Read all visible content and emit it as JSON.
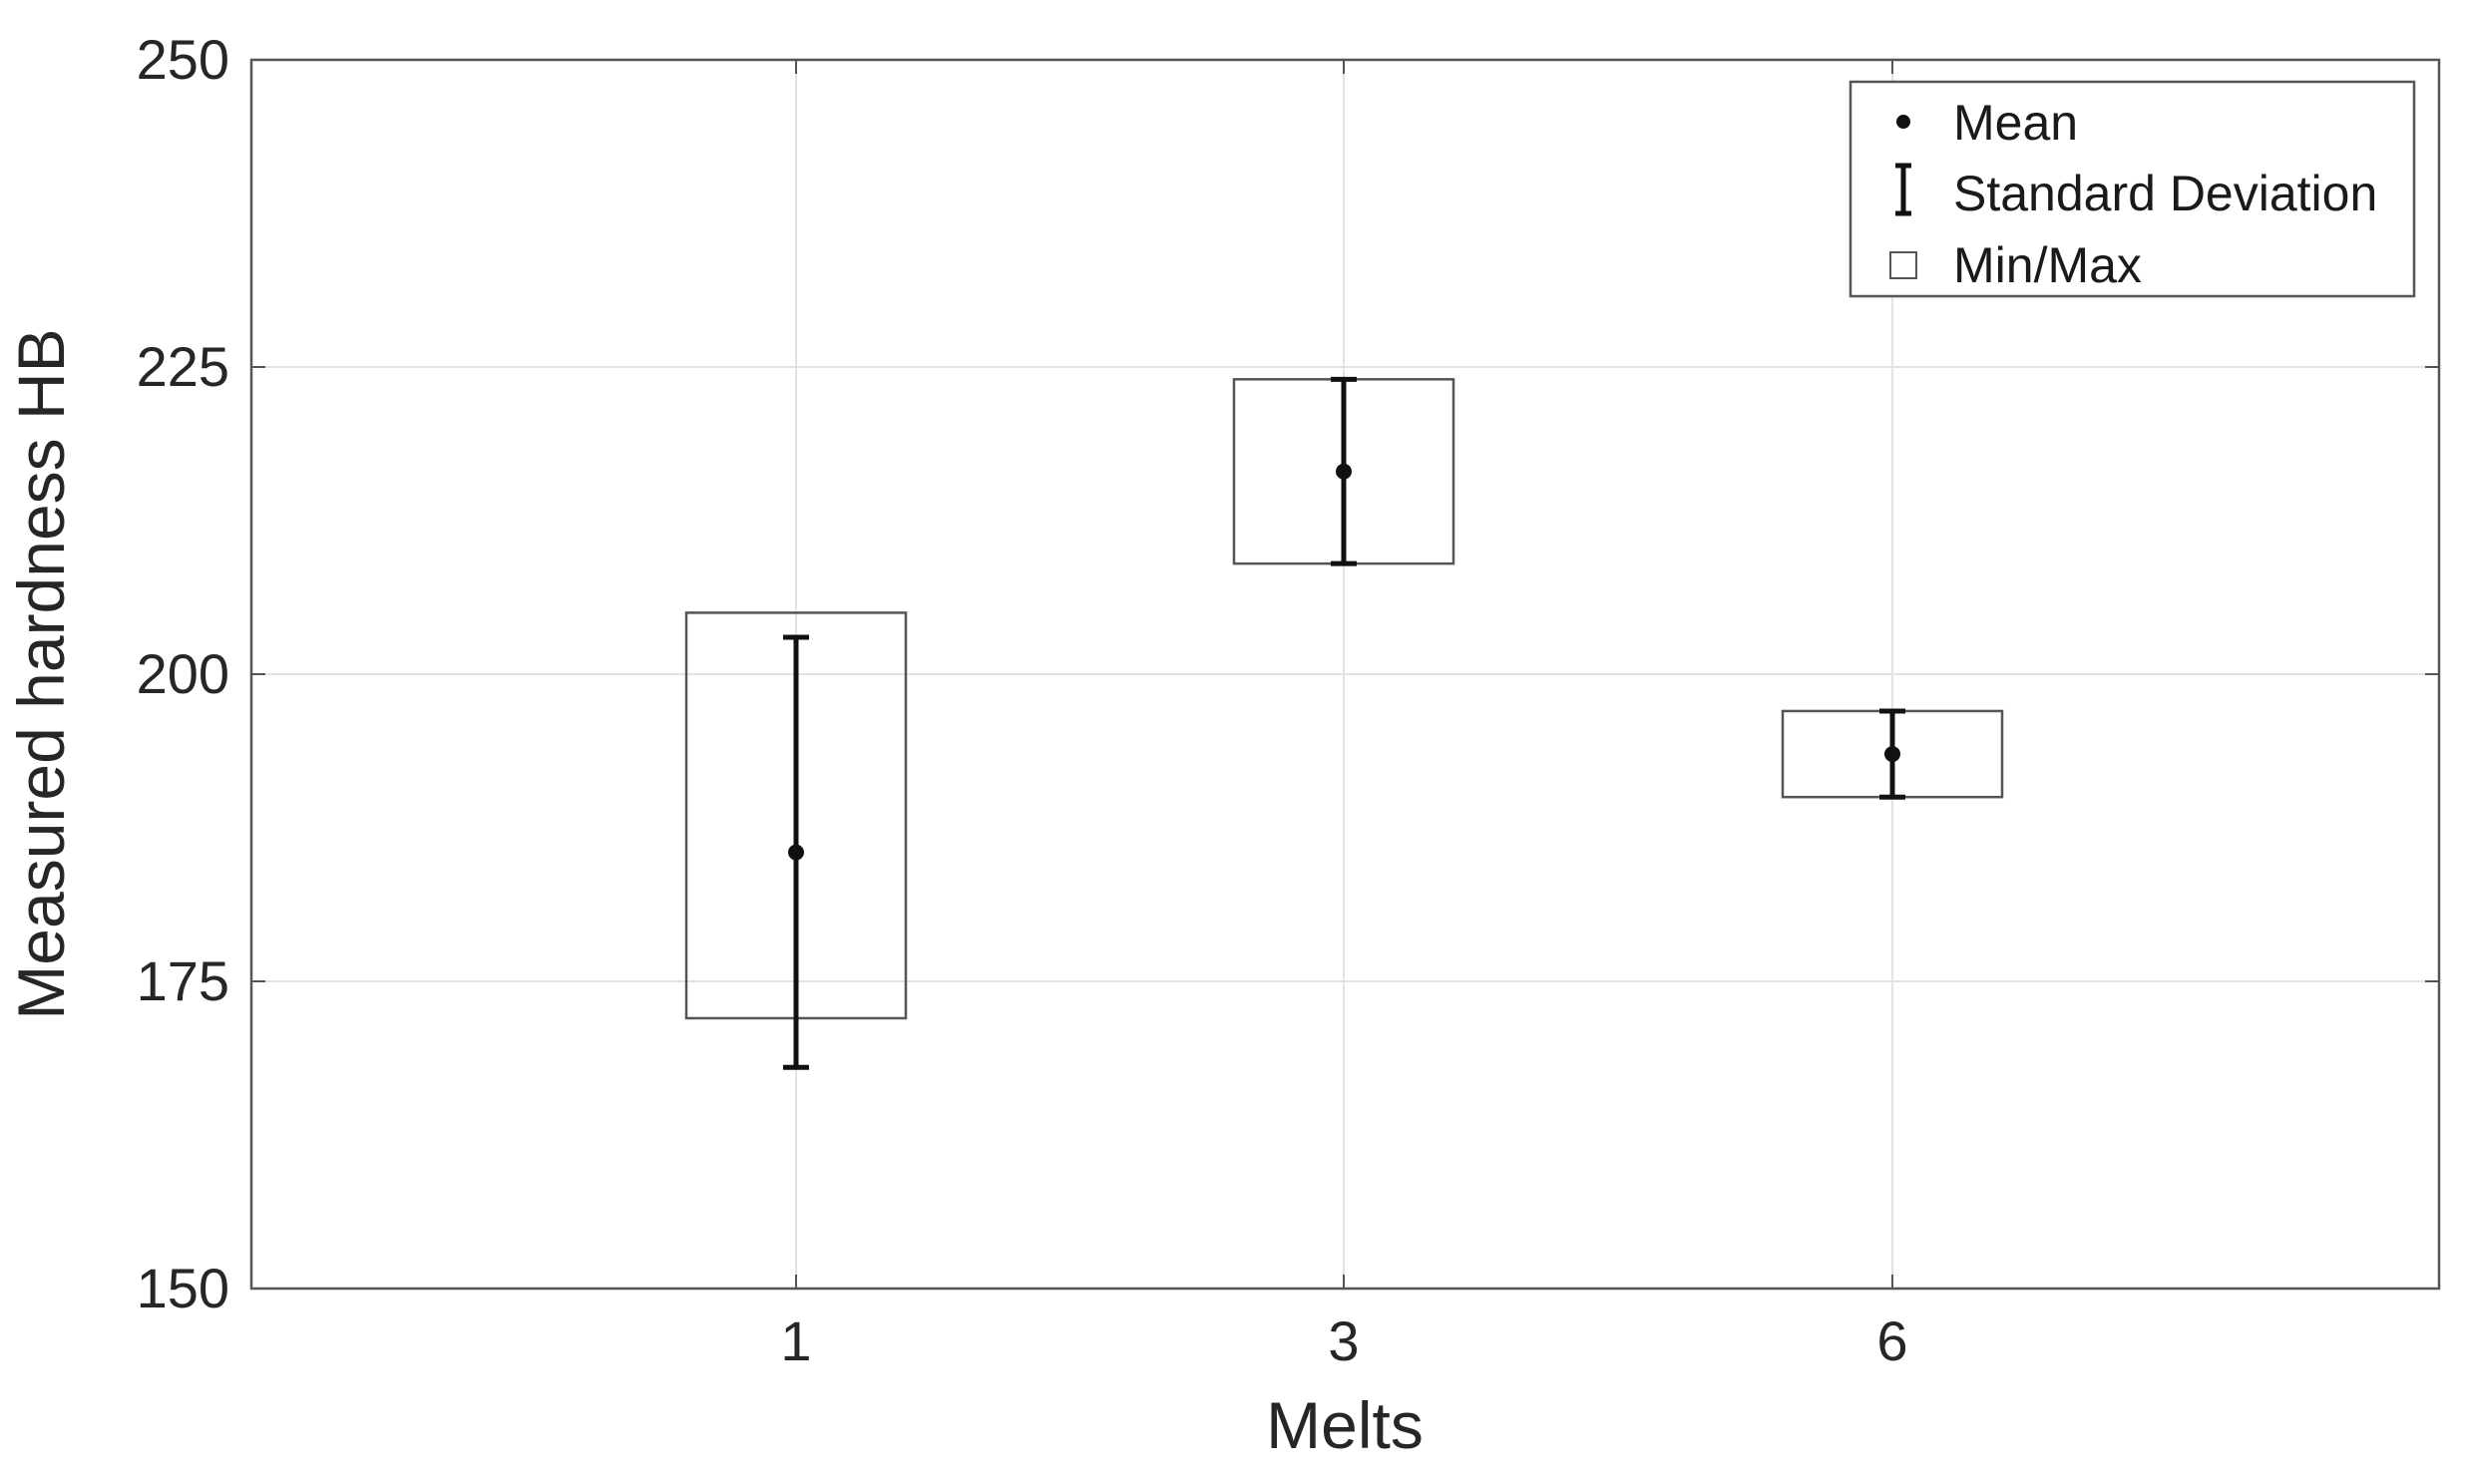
{
  "chart_data": {
    "type": "errorbar-box",
    "xlabel": "Melts",
    "ylabel": "Measured hardness HB",
    "ylim": [
      150,
      250
    ],
    "yticks": [
      150,
      175,
      200,
      225,
      250
    ],
    "categories": [
      "1",
      "3",
      "6"
    ],
    "points": [
      {
        "category": "1",
        "mean": 185.5,
        "std_low": 168.0,
        "std_high": 203.0,
        "min": 172.0,
        "max": 205.0
      },
      {
        "category": "3",
        "mean": 216.5,
        "std_low": 209.0,
        "std_high": 224.0,
        "min": 209.0,
        "max": 224.0
      },
      {
        "category": "6",
        "mean": 193.5,
        "std_low": 190.0,
        "std_high": 197.0,
        "min": 190.0,
        "max": 197.0
      }
    ],
    "legend": {
      "position": "top-right",
      "items": [
        {
          "symbol": "dot",
          "label": "Mean"
        },
        {
          "symbol": "errorbar",
          "label": "Standard Deviation"
        },
        {
          "symbol": "square",
          "label": "Min/Max"
        }
      ]
    },
    "grid": true,
    "colors": {
      "marks": "#111111",
      "box": "#555555",
      "grid": "#e3e3e3",
      "axes": "#555555"
    }
  }
}
